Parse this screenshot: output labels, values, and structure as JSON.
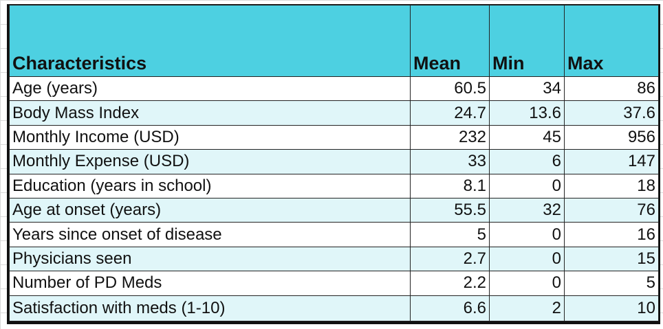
{
  "colors": {
    "header_bg": "#4dd0e1",
    "row_odd_bg": "#ffffff",
    "row_even_bg": "#e0f6f9",
    "border": "#111111"
  },
  "table": {
    "headers": [
      "Characteristics",
      "Mean",
      "Min",
      "Max"
    ],
    "rows": [
      {
        "label": "Age (years)",
        "mean": "60.5",
        "min": "34",
        "max": "86"
      },
      {
        "label": "Body Mass Index",
        "mean": "24.7",
        "min": "13.6",
        "max": "37.6"
      },
      {
        "label": "Monthly Income (USD)",
        "mean": "232",
        "min": "45",
        "max": "956"
      },
      {
        "label": "Monthly Expense (USD)",
        "mean": "33",
        "min": "6",
        "max": "147"
      },
      {
        "label": "Education (years in school)",
        "mean": "8.1",
        "min": "0",
        "max": "18"
      },
      {
        "label": "Age at onset (years)",
        "mean": "55.5",
        "min": "32",
        "max": "76"
      },
      {
        "label": "Years since onset of disease",
        "mean": "5",
        "min": "0",
        "max": "16"
      },
      {
        "label": "Physicians seen",
        "mean": "2.7",
        "min": "0",
        "max": "15"
      },
      {
        "label": "Number of PD Meds",
        "mean": "2.2",
        "min": "0",
        "max": "5"
      },
      {
        "label": "Satisfaction with meds (1-10)",
        "mean": "6.6",
        "min": "2",
        "max": "10"
      }
    ]
  }
}
